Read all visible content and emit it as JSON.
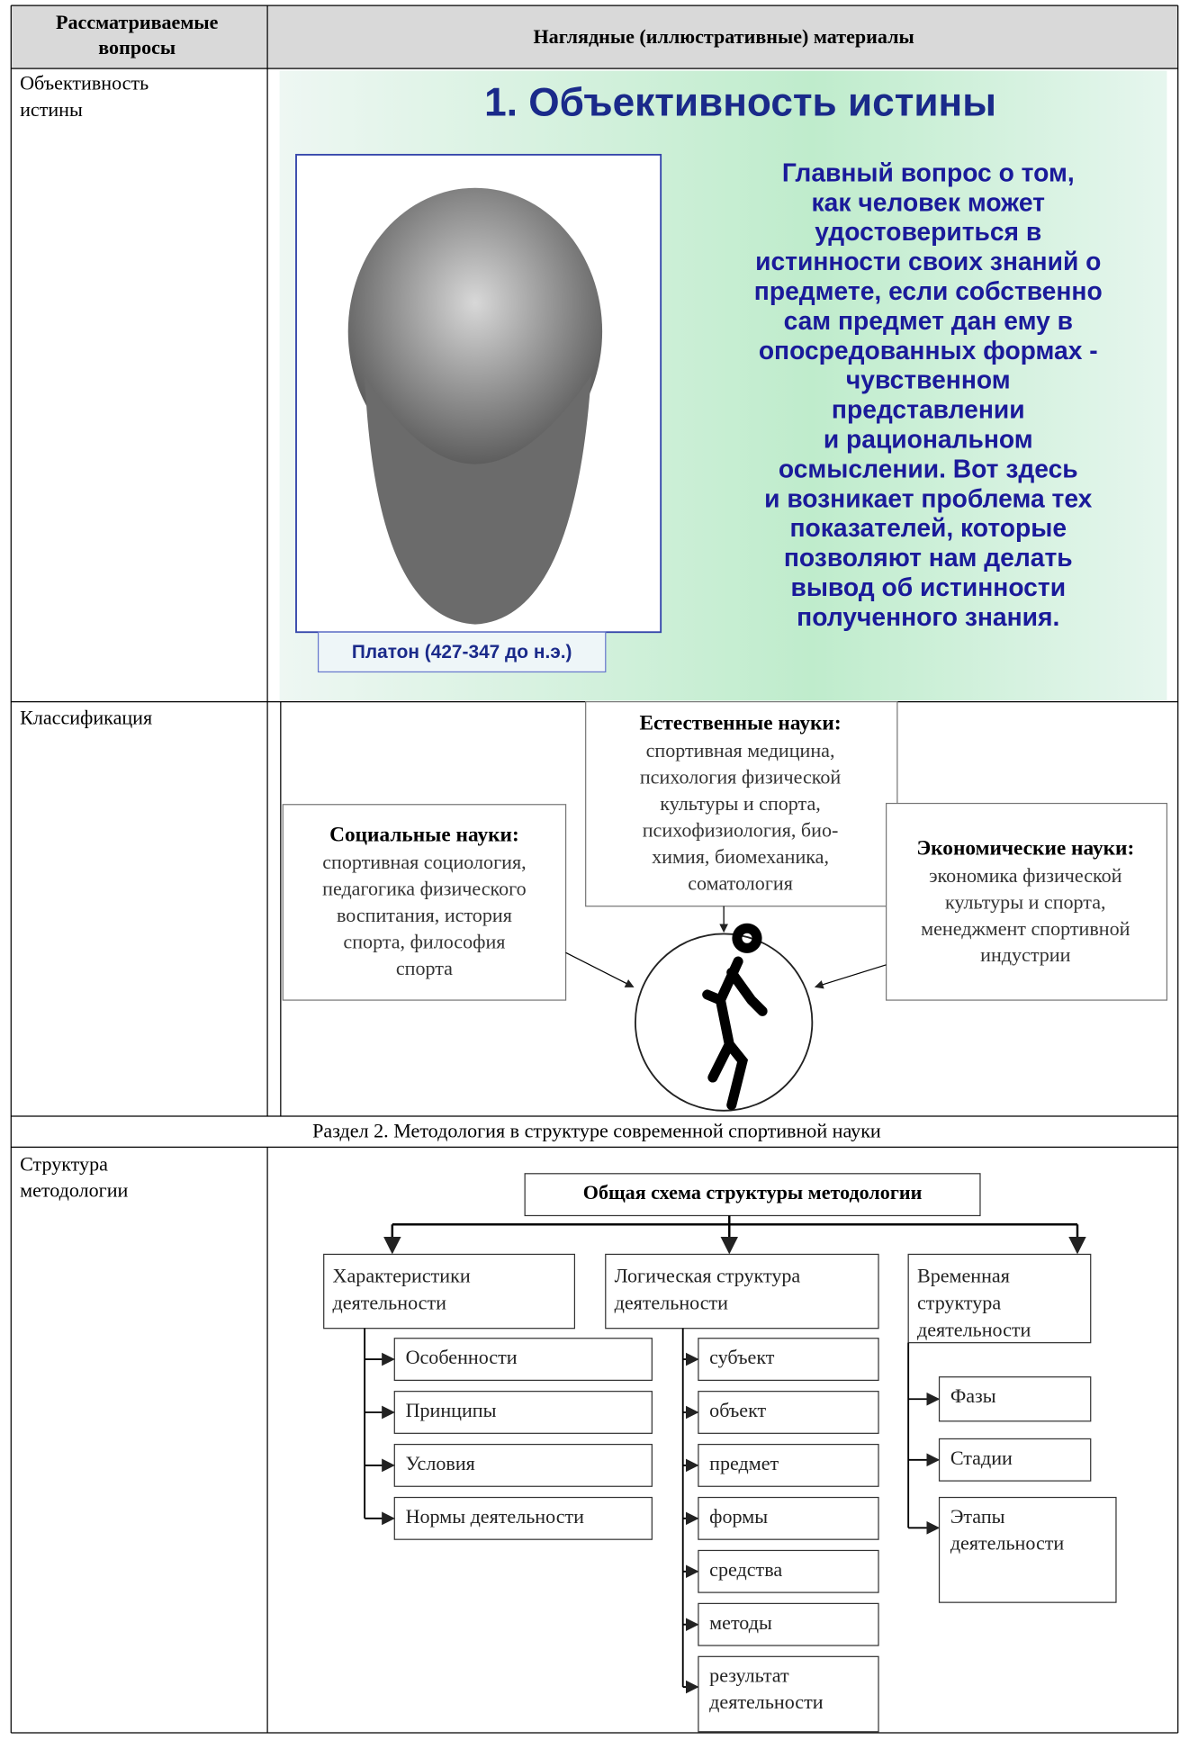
{
  "header": [
    "Рассматриваемые вопросы",
    "Наглядные (иллюстративные) материалы"
  ],
  "rows": [
    {
      "question": [
        "Объективность",
        "истины"
      ],
      "slide": {
        "title": "1. Объективность истины",
        "text": [
          "Главный вопрос о том,",
          "как человек может",
          "удостовериться в",
          "истинности своих знаний  о",
          "предмете, если собственно",
          "сам предмет дан ему в",
          "опосредованных формах -",
          "чувственном",
          "представлении",
          "и рациональном",
          "осмыслении. Вот здесь",
          "и возникает проблема тех",
          "показателей, которые",
          "позволяют нам делать",
          "вывод об истинности",
          "полученного знания."
        ],
        "caption": "Платон (427-347 до н.э.)"
      }
    },
    {
      "question": [
        "Классификация"
      ],
      "diagram": {
        "boxes": [
          {
            "title": "Естественные науки:",
            "text": [
              "спортивная медицина,",
              "психология физической",
              "культуры и спорта,",
              "психофизиология, био-",
              "химия, биомеханика,",
              "соматология"
            ]
          },
          {
            "title": "Социальные науки:",
            "text": [
              "спортивная социология,",
              "педагогика физического",
              "воспитания, история",
              "спорта, философия",
              "спорта"
            ]
          },
          {
            "title": "Экономические науки:",
            "text": [
              "экономика физической",
              "культуры и спорта,",
              "менеджмент спортивной",
              "индустрии"
            ]
          }
        ]
      }
    },
    {
      "section": "Раздел 2. Методология в структуре современной спортивной науки"
    },
    {
      "question": [
        "Структура",
        "методологии"
      ],
      "diagram": {
        "title": "Общая схема структуры методологии",
        "groups": [
          {
            "title": [
              "Характеристики",
              "деятельности"
            ],
            "items": [
              [
                "Особенности"
              ],
              [
                "Принципы"
              ],
              [
                "Условия"
              ],
              [
                "Нормы деятельности"
              ]
            ]
          },
          {
            "title": [
              "Логическая структура",
              "деятельности"
            ],
            "items": [
              [
                "субъект"
              ],
              [
                "объект"
              ],
              [
                "предмет"
              ],
              [
                "формы"
              ],
              [
                "средства"
              ],
              [
                "методы"
              ],
              [
                "результат",
                "деятельности"
              ]
            ]
          },
          {
            "title": [
              "Временная",
              "структура",
              "деятельности"
            ],
            "items": [
              [
                "Фазы"
              ],
              [
                "Стадии"
              ],
              [
                "Этапы",
                "деятельности"
              ]
            ]
          }
        ]
      }
    }
  ]
}
